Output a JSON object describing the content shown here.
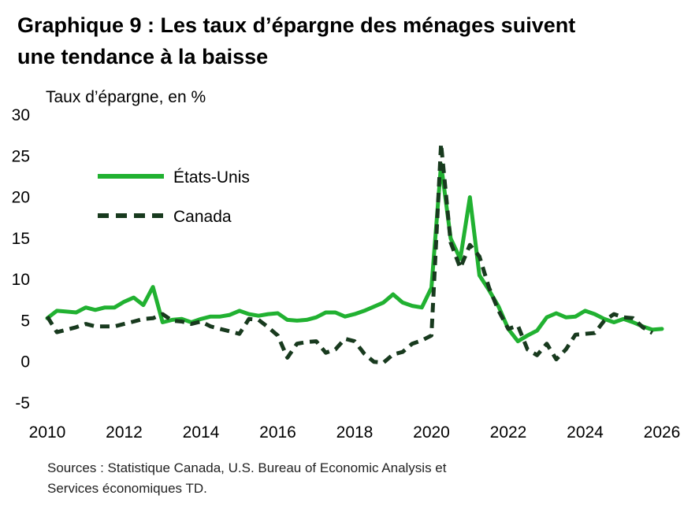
{
  "title": {
    "line1": "Graphique 9 : Les taux d’épargne des ménages suivent",
    "line2": "une tendance à la baisse"
  },
  "sources": {
    "line1": "Sources : Statistique Canada, U.S. Bureau of Economic Analysis et",
    "line2": "Services économiques TD."
  },
  "chart_data": {
    "type": "line",
    "ylabel": "Taux d’épargne, en %",
    "xlabel": "",
    "xlim": [
      2010,
      2026
    ],
    "ylim": [
      -5,
      30
    ],
    "x_ticks": [
      2010,
      2012,
      2014,
      2016,
      2018,
      2020,
      2022,
      2024,
      2026
    ],
    "y_ticks": [
      -5,
      0,
      5,
      10,
      15,
      20,
      25,
      30
    ],
    "grid": false,
    "legend_position": "upper-left",
    "series": [
      {
        "name": "États-Unis",
        "color": "#21b131",
        "style": "solid",
        "x": [
          2010.0,
          2010.25,
          2010.5,
          2010.75,
          2011.0,
          2011.25,
          2011.5,
          2011.75,
          2012.0,
          2012.25,
          2012.5,
          2012.75,
          2013.0,
          2013.25,
          2013.5,
          2013.75,
          2014.0,
          2014.25,
          2014.5,
          2014.75,
          2015.0,
          2015.25,
          2015.5,
          2015.75,
          2016.0,
          2016.25,
          2016.5,
          2016.75,
          2017.0,
          2017.25,
          2017.5,
          2017.75,
          2018.0,
          2018.25,
          2018.5,
          2018.75,
          2019.0,
          2019.25,
          2019.5,
          2019.75,
          2020.0,
          2020.25,
          2020.5,
          2020.75,
          2021.0,
          2021.25,
          2021.5,
          2021.75,
          2022.0,
          2022.25,
          2022.5,
          2022.75,
          2023.0,
          2023.25,
          2023.5,
          2023.75,
          2024.0,
          2024.25,
          2024.5,
          2024.75,
          2025.0,
          2025.25,
          2025.5,
          2025.75,
          2026.0
        ],
        "values": [
          5.3,
          6.2,
          6.1,
          6.0,
          6.6,
          6.3,
          6.6,
          6.6,
          7.3,
          7.8,
          6.9,
          9.1,
          4.8,
          5.1,
          5.2,
          4.8,
          5.2,
          5.5,
          5.5,
          5.7,
          6.2,
          5.8,
          5.6,
          5.8,
          5.9,
          5.1,
          5.0,
          5.1,
          5.4,
          6.0,
          6.0,
          5.5,
          5.8,
          6.2,
          6.7,
          7.2,
          8.2,
          7.2,
          6.8,
          6.6,
          9.0,
          24.0,
          15.0,
          12.5,
          20.0,
          10.5,
          8.7,
          6.7,
          4.0,
          2.5,
          3.2,
          3.8,
          5.4,
          5.9,
          5.4,
          5.5,
          6.2,
          5.8,
          5.2,
          4.8,
          5.2,
          4.8,
          4.3,
          3.9,
          4.0
        ]
      },
      {
        "name": "Canada",
        "color": "#183a1e",
        "style": "dashed",
        "x": [
          2010.0,
          2010.25,
          2010.5,
          2010.75,
          2011.0,
          2011.25,
          2011.5,
          2011.75,
          2012.0,
          2012.25,
          2012.5,
          2012.75,
          2013.0,
          2013.25,
          2013.5,
          2013.75,
          2014.0,
          2014.25,
          2014.5,
          2014.75,
          2015.0,
          2015.25,
          2015.5,
          2015.75,
          2016.0,
          2016.25,
          2016.5,
          2016.75,
          2017.0,
          2017.25,
          2017.5,
          2017.75,
          2018.0,
          2018.25,
          2018.5,
          2018.75,
          2019.0,
          2019.25,
          2019.5,
          2019.75,
          2020.0,
          2020.25,
          2020.5,
          2020.75,
          2021.0,
          2021.25,
          2021.5,
          2021.75,
          2022.0,
          2022.25,
          2022.5,
          2022.75,
          2023.0,
          2023.25,
          2023.5,
          2023.75,
          2024.0,
          2024.25,
          2024.5,
          2024.75,
          2025.0,
          2025.25,
          2025.5,
          2025.75
        ],
        "values": [
          5.5,
          3.6,
          3.9,
          4.2,
          4.6,
          4.3,
          4.3,
          4.3,
          4.6,
          4.9,
          5.2,
          5.3,
          5.8,
          5.0,
          4.9,
          4.6,
          4.9,
          4.3,
          4.0,
          3.7,
          3.4,
          5.2,
          5.1,
          4.2,
          3.2,
          0.5,
          2.2,
          2.4,
          2.5,
          1.1,
          1.5,
          2.8,
          2.5,
          1.0,
          0.0,
          -0.1,
          0.9,
          1.2,
          2.2,
          2.6,
          3.2,
          26.5,
          14.5,
          11.4,
          14.2,
          12.8,
          9.0,
          6.2,
          4.0,
          4.4,
          1.5,
          0.8,
          2.2,
          0.3,
          1.5,
          3.3,
          3.4,
          3.5,
          5.0,
          5.8,
          5.4,
          5.3,
          4.2,
          3.5
        ]
      }
    ]
  }
}
